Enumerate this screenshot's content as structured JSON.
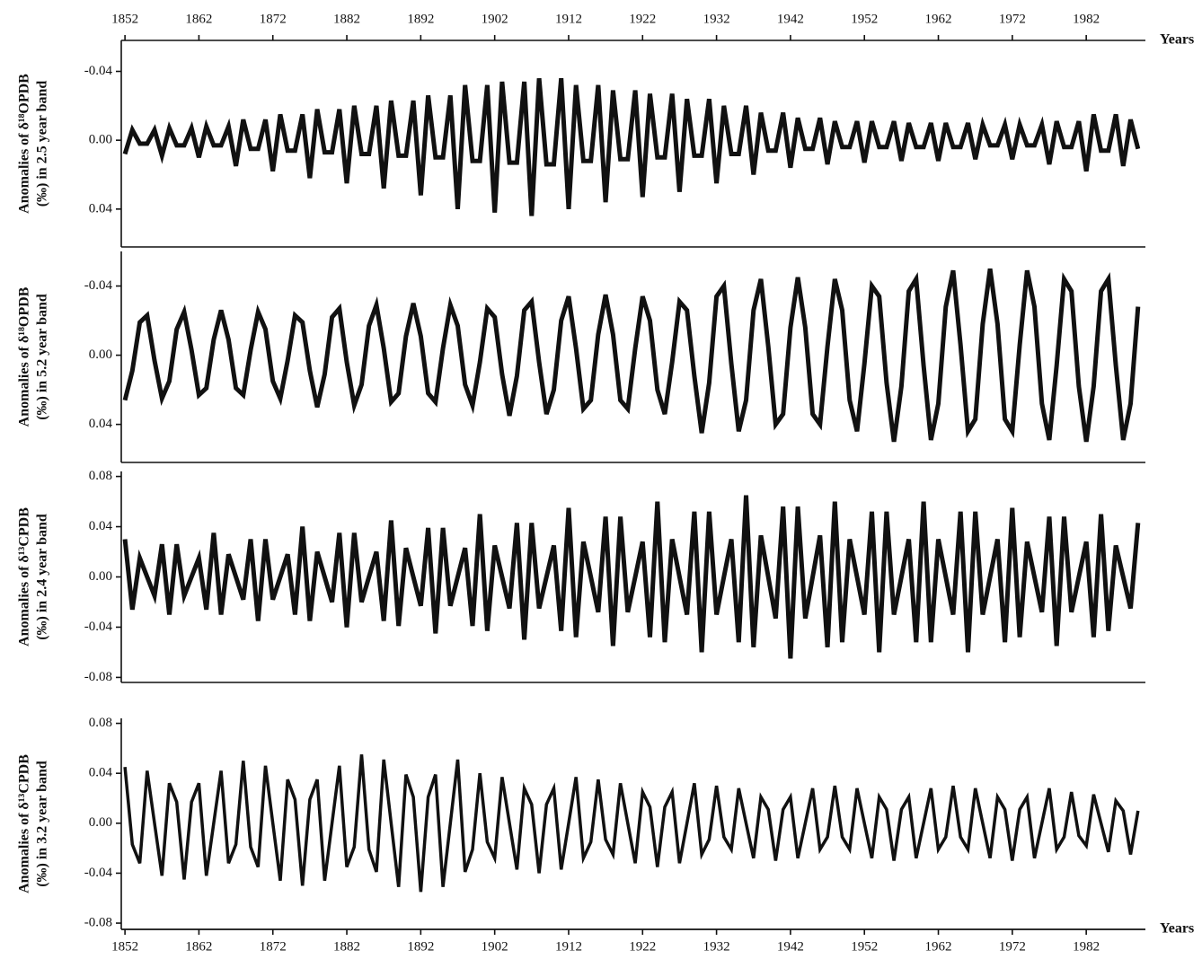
{
  "chart_data": [
    {
      "type": "line",
      "ylabel": [
        "Anomalies of δ¹⁸OPDB",
        "(‰) in 2.5 year band"
      ],
      "xlabel": "Years",
      "x_axis_side": "top",
      "xlim": [
        1851.5,
        1990
      ],
      "xticks": [
        1852,
        1862,
        1872,
        1882,
        1892,
        1902,
        1912,
        1922,
        1932,
        1942,
        1952,
        1962,
        1972,
        1982
      ],
      "ylim": [
        0.062,
        -0.058
      ],
      "yticks": [
        -0.04,
        {
          "value": 0,
          "label": "0.00"
        },
        0.04
      ],
      "x": [
        1852,
        1853,
        1854,
        1855,
        1856,
        1857,
        1858,
        1859,
        1860,
        1861,
        1862,
        1863,
        1864,
        1865,
        1866,
        1867,
        1868,
        1869,
        1870,
        1871,
        1872,
        1873,
        1874,
        1875,
        1876,
        1877,
        1878,
        1879,
        1880,
        1881,
        1882,
        1883,
        1884,
        1885,
        1886,
        1887,
        1888,
        1889,
        1890,
        1891,
        1892,
        1893,
        1894,
        1895,
        1896,
        1897,
        1898,
        1899,
        1900,
        1901,
        1902,
        1903,
        1904,
        1905,
        1906,
        1907,
        1908,
        1909,
        1910,
        1911,
        1912,
        1913,
        1914,
        1915,
        1916,
        1917,
        1918,
        1919,
        1920,
        1921,
        1922,
        1923,
        1924,
        1925,
        1926,
        1927,
        1928,
        1929,
        1930,
        1931,
        1932,
        1933,
        1934,
        1935,
        1936,
        1937,
        1938,
        1939,
        1940,
        1941,
        1942,
        1943,
        1944,
        1945,
        1946,
        1947,
        1948,
        1949,
        1950,
        1951,
        1952,
        1953,
        1954,
        1955,
        1956,
        1957,
        1958,
        1959,
        1960,
        1961,
        1962,
        1963,
        1964,
        1965,
        1966,
        1967,
        1968,
        1969,
        1970,
        1971,
        1972,
        1973,
        1974,
        1975,
        1976,
        1977,
        1978,
        1979,
        1980,
        1981,
        1982,
        1983,
        1984,
        1985,
        1986,
        1987,
        1988,
        1989
      ],
      "color": "#111111",
      "values": [
        0.008,
        -0.006,
        0.002,
        0.002,
        -0.006,
        0.009,
        -0.007,
        0.003,
        0.003,
        -0.007,
        0.01,
        -0.008,
        0.003,
        0.003,
        -0.008,
        0.015,
        -0.012,
        0.005,
        0.005,
        -0.012,
        0.018,
        -0.015,
        0.006,
        0.006,
        -0.015,
        0.022,
        -0.018,
        0.007,
        0.007,
        -0.018,
        0.025,
        -0.02,
        0.008,
        0.008,
        -0.02,
        0.028,
        -0.023,
        0.009,
        0.009,
        -0.023,
        0.032,
        -0.026,
        0.01,
        0.01,
        -0.026,
        0.04,
        -0.032,
        0.012,
        0.012,
        -0.032,
        0.042,
        -0.034,
        0.013,
        0.013,
        -0.034,
        0.044,
        -0.036,
        0.014,
        0.014,
        -0.036,
        0.04,
        -0.032,
        0.012,
        0.012,
        -0.032,
        0.036,
        -0.029,
        0.011,
        0.011,
        -0.029,
        0.033,
        -0.027,
        0.01,
        0.01,
        -0.027,
        0.03,
        -0.024,
        0.009,
        0.009,
        -0.024,
        0.025,
        -0.02,
        0.008,
        0.008,
        -0.02,
        0.02,
        -0.016,
        0.006,
        0.006,
        -0.016,
        0.016,
        -0.013,
        0.005,
        0.005,
        -0.013,
        0.014,
        -0.011,
        0.004,
        0.004,
        -0.011,
        0.013,
        -0.011,
        0.004,
        0.004,
        -0.011,
        0.012,
        -0.01,
        0.004,
        0.004,
        -0.01,
        0.012,
        -0.01,
        0.004,
        0.004,
        -0.01,
        0.011,
        -0.009,
        0.003,
        0.003,
        -0.009,
        0.011,
        -0.009,
        0.003,
        0.003,
        -0.009,
        0.014,
        -0.011,
        0.004,
        0.004,
        -0.011,
        0.018,
        -0.015,
        0.006,
        0.006,
        -0.015,
        0.015,
        -0.012,
        0.005
      ]
    },
    {
      "type": "line",
      "ylabel": [
        "Anomalies of δ¹⁸OPDB",
        "(‰) in 5.2 year band"
      ],
      "xlim": [
        1851.5,
        1990
      ],
      "ylim": [
        0.062,
        -0.06
      ],
      "yticks": [
        -0.04,
        {
          "value": 0,
          "label": "0.00"
        },
        0.04
      ],
      "x": [
        1852,
        1853,
        1854,
        1855,
        1856,
        1857,
        1858,
        1859,
        1860,
        1861,
        1862,
        1863,
        1864,
        1865,
        1866,
        1867,
        1868,
        1869,
        1870,
        1871,
        1872,
        1873,
        1874,
        1875,
        1876,
        1877,
        1878,
        1879,
        1880,
        1881,
        1882,
        1883,
        1884,
        1885,
        1886,
        1887,
        1888,
        1889,
        1890,
        1891,
        1892,
        1893,
        1894,
        1895,
        1896,
        1897,
        1898,
        1899,
        1900,
        1901,
        1902,
        1903,
        1904,
        1905,
        1906,
        1907,
        1908,
        1909,
        1910,
        1911,
        1912,
        1913,
        1914,
        1915,
        1916,
        1917,
        1918,
        1919,
        1920,
        1921,
        1922,
        1923,
        1924,
        1925,
        1926,
        1927,
        1928,
        1929,
        1930,
        1931,
        1932,
        1933,
        1934,
        1935,
        1936,
        1937,
        1938,
        1939,
        1940,
        1941,
        1942,
        1943,
        1944,
        1945,
        1946,
        1947,
        1948,
        1949,
        1950,
        1951,
        1952,
        1953,
        1954,
        1955,
        1956,
        1957,
        1958,
        1959,
        1960,
        1961,
        1962,
        1963,
        1964,
        1965,
        1966,
        1967,
        1968,
        1969,
        1970,
        1971,
        1972,
        1973,
        1974,
        1975,
        1976,
        1977,
        1978,
        1979,
        1980,
        1981,
        1982,
        1983,
        1984,
        1985,
        1986,
        1987,
        1988,
        1989
      ],
      "color": "#111111",
      "values": [
        0.026,
        0.009,
        -0.019,
        -0.023,
        0.003,
        0.025,
        0.015,
        -0.015,
        -0.025,
        -0.003,
        0.023,
        0.019,
        -0.009,
        -0.026,
        -0.009,
        0.019,
        0.023,
        -0.003,
        -0.025,
        -0.015,
        0.015,
        0.025,
        0.003,
        -0.023,
        -0.019,
        0.009,
        0.03,
        0.011,
        -0.022,
        -0.027,
        0.004,
        0.029,
        0.017,
        -0.017,
        -0.029,
        -0.004,
        0.027,
        0.022,
        -0.011,
        -0.03,
        -0.011,
        0.022,
        0.027,
        -0.004,
        -0.029,
        -0.017,
        0.017,
        0.029,
        0.004,
        -0.027,
        -0.022,
        0.011,
        0.035,
        0.012,
        -0.026,
        -0.031,
        0.004,
        0.034,
        0.02,
        -0.02,
        -0.034,
        -0.004,
        0.031,
        0.026,
        -0.012,
        -0.035,
        -0.012,
        0.026,
        0.031,
        -0.004,
        -0.034,
        -0.02,
        0.02,
        0.034,
        0.004,
        -0.031,
        -0.026,
        0.012,
        0.045,
        0.016,
        -0.034,
        -0.04,
        0.005,
        0.044,
        0.026,
        -0.026,
        -0.044,
        -0.005,
        0.04,
        0.034,
        -0.016,
        -0.045,
        -0.016,
        0.034,
        0.04,
        -0.005,
        -0.044,
        -0.026,
        0.026,
        0.044,
        0.005,
        -0.04,
        -0.034,
        0.016,
        0.05,
        0.018,
        -0.037,
        -0.044,
        0.006,
        0.049,
        0.028,
        -0.028,
        -0.049,
        -0.006,
        0.044,
        0.037,
        -0.018,
        -0.05,
        -0.018,
        0.037,
        0.044,
        -0.006,
        -0.049,
        -0.028,
        0.028,
        0.049,
        0.006,
        -0.044,
        -0.037,
        0.018,
        0.05,
        0.018,
        -0.037,
        -0.044,
        0.006,
        0.049,
        0.028,
        -0.028
      ]
    },
    {
      "type": "line",
      "ylabel": [
        "Anomalies of δ¹³CPDB",
        "(‰) in 2.4 year band"
      ],
      "xlim": [
        1851.5,
        1990
      ],
      "ylim": [
        -0.084,
        0.084
      ],
      "yticks": [
        {
          "value": -0.08,
          "label": "-0.08"
        },
        -0.04,
        {
          "value": 0,
          "label": "0.00"
        },
        0.04,
        0.08
      ],
      "x": [
        1852,
        1853,
        1854,
        1855,
        1856,
        1857,
        1858,
        1859,
        1860,
        1861,
        1862,
        1863,
        1864,
        1865,
        1866,
        1867,
        1868,
        1869,
        1870,
        1871,
        1872,
        1873,
        1874,
        1875,
        1876,
        1877,
        1878,
        1879,
        1880,
        1881,
        1882,
        1883,
        1884,
        1885,
        1886,
        1887,
        1888,
        1889,
        1890,
        1891,
        1892,
        1893,
        1894,
        1895,
        1896,
        1897,
        1898,
        1899,
        1900,
        1901,
        1902,
        1903,
        1904,
        1905,
        1906,
        1907,
        1908,
        1909,
        1910,
        1911,
        1912,
        1913,
        1914,
        1915,
        1916,
        1917,
        1918,
        1919,
        1920,
        1921,
        1922,
        1923,
        1924,
        1925,
        1926,
        1927,
        1928,
        1929,
        1930,
        1931,
        1932,
        1933,
        1934,
        1935,
        1936,
        1937,
        1938,
        1939,
        1940,
        1941,
        1942,
        1943,
        1944,
        1945,
        1946,
        1947,
        1948,
        1949,
        1950,
        1951,
        1952,
        1953,
        1954,
        1955,
        1956,
        1957,
        1958,
        1959,
        1960,
        1961,
        1962,
        1963,
        1964,
        1965,
        1966,
        1967,
        1968,
        1969,
        1970,
        1971,
        1972,
        1973,
        1974,
        1975,
        1976,
        1977,
        1978,
        1979,
        1980,
        1981,
        1982,
        1983,
        1984,
        1985,
        1986,
        1987,
        1988,
        1989
      ],
      "color": "#111111",
      "values": [
        0.03,
        -0.026,
        0.015,
        0,
        -0.015,
        0.026,
        -0.03,
        0.026,
        -0.015,
        0,
        0.015,
        -0.026,
        0.035,
        -0.03,
        0.018,
        0,
        -0.018,
        0.03,
        -0.035,
        0.03,
        -0.018,
        0,
        0.018,
        -0.03,
        0.04,
        -0.035,
        0.02,
        0,
        -0.02,
        0.035,
        -0.04,
        0.035,
        -0.02,
        0,
        0.02,
        -0.035,
        0.045,
        -0.039,
        0.023,
        0,
        -0.023,
        0.039,
        -0.045,
        0.039,
        -0.023,
        0,
        0.023,
        -0.039,
        0.05,
        -0.043,
        0.025,
        0,
        -0.025,
        0.043,
        -0.05,
        0.043,
        -0.025,
        0,
        0.025,
        -0.043,
        0.055,
        -0.048,
        0.028,
        0,
        -0.028,
        0.048,
        -0.055,
        0.048,
        -0.028,
        0,
        0.028,
        -0.048,
        0.06,
        -0.052,
        0.03,
        0,
        -0.03,
        0.052,
        -0.06,
        0.052,
        -0.03,
        0,
        0.03,
        -0.052,
        0.065,
        -0.056,
        0.033,
        0,
        -0.033,
        0.056,
        -0.065,
        0.056,
        -0.033,
        0,
        0.033,
        -0.056,
        0.06,
        -0.052,
        0.03,
        0,
        -0.03,
        0.052,
        -0.06,
        0.052,
        -0.03,
        0,
        0.03,
        -0.052,
        0.06,
        -0.052,
        0.03,
        0,
        -0.03,
        0.052,
        -0.06,
        0.052,
        -0.03,
        0,
        0.03,
        -0.052,
        0.055,
        -0.048,
        0.028,
        0,
        -0.028,
        0.048,
        -0.055,
        0.048,
        -0.028,
        0,
        0.028,
        -0.048,
        0.05,
        -0.043,
        0.025,
        0,
        -0.025,
        0.043
      ]
    },
    {
      "type": "line",
      "ylabel": [
        "Anomalies of δ¹³CPDB",
        "(‰) in 3.2 year band"
      ],
      "xlabel": "Years",
      "x_axis_side": "bottom",
      "xlim": [
        1851.5,
        1990
      ],
      "xticks": [
        1852,
        1862,
        1872,
        1882,
        1892,
        1902,
        1912,
        1922,
        1932,
        1942,
        1952,
        1962,
        1972,
        1982
      ],
      "ylim": [
        -0.085,
        0.084
      ],
      "yticks": [
        {
          "value": -0.08,
          "label": "-0.08"
        },
        -0.04,
        {
          "value": 0,
          "label": "0.00"
        },
        0.04,
        0.08
      ],
      "x": [
        1852,
        1853,
        1854,
        1855,
        1856,
        1857,
        1858,
        1859,
        1860,
        1861,
        1862,
        1863,
        1864,
        1865,
        1866,
        1867,
        1868,
        1869,
        1870,
        1871,
        1872,
        1873,
        1874,
        1875,
        1876,
        1877,
        1878,
        1879,
        1880,
        1881,
        1882,
        1883,
        1884,
        1885,
        1886,
        1887,
        1888,
        1889,
        1890,
        1891,
        1892,
        1893,
        1894,
        1895,
        1896,
        1897,
        1898,
        1899,
        1900,
        1901,
        1902,
        1903,
        1904,
        1905,
        1906,
        1907,
        1908,
        1909,
        1910,
        1911,
        1912,
        1913,
        1914,
        1915,
        1916,
        1917,
        1918,
        1919,
        1920,
        1921,
        1922,
        1923,
        1924,
        1925,
        1926,
        1927,
        1928,
        1929,
        1930,
        1931,
        1932,
        1933,
        1934,
        1935,
        1936,
        1937,
        1938,
        1939,
        1940,
        1941,
        1942,
        1943,
        1944,
        1945,
        1946,
        1947,
        1948,
        1949,
        1950,
        1951,
        1952,
        1953,
        1954,
        1955,
        1956,
        1957,
        1958,
        1959,
        1960,
        1961,
        1962,
        1963,
        1964,
        1965,
        1966,
        1967,
        1968,
        1969,
        1970,
        1971,
        1972,
        1973,
        1974,
        1975,
        1976,
        1977,
        1978,
        1979,
        1980,
        1981,
        1982,
        1983,
        1984,
        1985,
        1986,
        1987,
        1988,
        1989
      ],
      "color": "#111111",
      "values": [
        0.045,
        -0.017,
        -0.032,
        0.042,
        0,
        -0.042,
        0.032,
        0.017,
        -0.045,
        0.017,
        0.032,
        -0.042,
        0,
        0.042,
        -0.032,
        -0.017,
        0.05,
        -0.019,
        -0.035,
        0.046,
        0,
        -0.046,
        0.035,
        0.019,
        -0.05,
        0.019,
        0.035,
        -0.046,
        0,
        0.046,
        -0.035,
        -0.019,
        0.055,
        -0.021,
        -0.039,
        0.051,
        0,
        -0.051,
        0.039,
        0.021,
        -0.055,
        0.021,
        0.039,
        -0.051,
        0,
        0.051,
        -0.039,
        -0.021,
        0.04,
        -0.015,
        -0.028,
        0.037,
        0,
        -0.037,
        0.028,
        0.015,
        -0.04,
        0.015,
        0.028,
        -0.037,
        0,
        0.037,
        -0.028,
        -0.015,
        0.035,
        -0.013,
        -0.025,
        0.032,
        0,
        -0.032,
        0.025,
        0.013,
        -0.035,
        0.013,
        0.025,
        -0.032,
        0,
        0.032,
        -0.025,
        -0.013,
        0.03,
        -0.011,
        -0.021,
        0.028,
        0,
        -0.028,
        0.021,
        0.011,
        -0.03,
        0.011,
        0.021,
        -0.028,
        0,
        0.028,
        -0.021,
        -0.011,
        0.03,
        -0.011,
        -0.021,
        0.028,
        0,
        -0.028,
        0.021,
        0.011,
        -0.03,
        0.011,
        0.021,
        -0.028,
        0,
        0.028,
        -0.021,
        -0.011,
        0.03,
        -0.011,
        -0.021,
        0.028,
        0,
        -0.028,
        0.021,
        0.011,
        -0.03,
        0.011,
        0.021,
        -0.028,
        0,
        0.028,
        -0.021,
        -0.011,
        0.025,
        -0.01,
        -0.018,
        0.023,
        0,
        -0.023,
        0.018,
        0.01,
        -0.025,
        0.01
      ]
    }
  ]
}
